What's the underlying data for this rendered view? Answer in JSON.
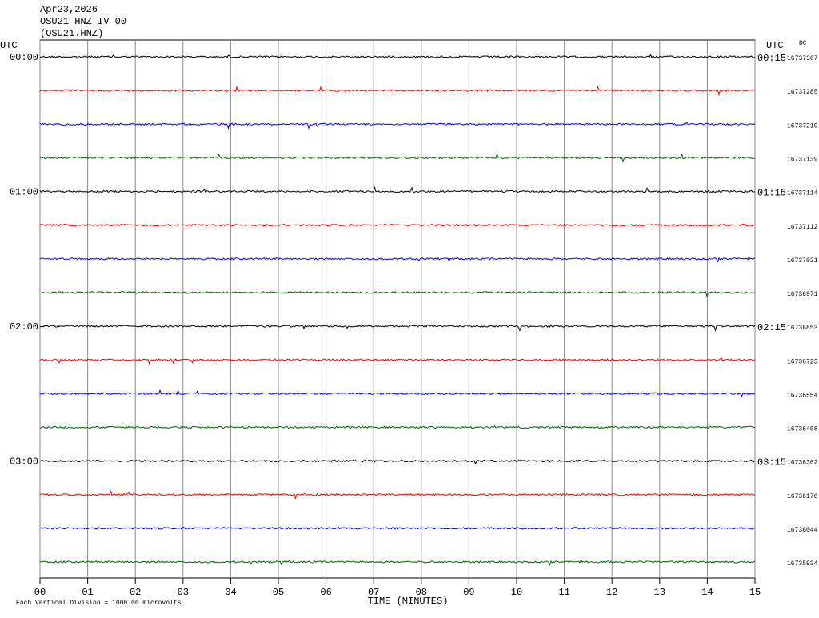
{
  "chart_data": {
    "type": "helicorder",
    "title_lines": [
      "Apr23,2026",
      "OSU21 HNZ IV 00",
      "(OSU21.HNZ)"
    ],
    "left_axis_label": "UTC",
    "right_axis_label": "UTC",
    "dc_label": "DC",
    "xlabel": "TIME (MINUTES)",
    "footnote": "Each Vertical Division = 1000.00 microvolts",
    "xlim": [
      0,
      15
    ],
    "xticks": [
      {
        "value": 0,
        "label": "00"
      },
      {
        "value": 1,
        "label": "01"
      },
      {
        "value": 2,
        "label": "02"
      },
      {
        "value": 3,
        "label": "03"
      },
      {
        "value": 4,
        "label": "04"
      },
      {
        "value": 5,
        "label": "05"
      },
      {
        "value": 6,
        "label": "06"
      },
      {
        "value": 7,
        "label": "07"
      },
      {
        "value": 8,
        "label": "08"
      },
      {
        "value": 9,
        "label": "09"
      },
      10,
      11,
      12,
      13,
      14,
      15
    ],
    "grid": true,
    "rows": [
      {
        "color": "#000000",
        "dc": 16737367,
        "left_label": "00:00",
        "right_label": "00:15"
      },
      {
        "color": "#ff0000",
        "dc": 16737285,
        "left_label": null,
        "right_label": null
      },
      {
        "color": "#0000ff",
        "dc": 16737219,
        "left_label": null,
        "right_label": null
      },
      {
        "color": "#006400",
        "dc": 16737139,
        "left_label": null,
        "right_label": null
      },
      {
        "color": "#000000",
        "dc": 16737114,
        "left_label": "01:00",
        "right_label": "01:15"
      },
      {
        "color": "#ff0000",
        "dc": 16737112,
        "left_label": null,
        "right_label": null
      },
      {
        "color": "#0000ff",
        "dc": 16737021,
        "left_label": null,
        "right_label": null
      },
      {
        "color": "#006400",
        "dc": 16736971,
        "left_label": null,
        "right_label": null
      },
      {
        "color": "#000000",
        "dc": 16736853,
        "left_label": "02:00",
        "right_label": "02:15"
      },
      {
        "color": "#ff0000",
        "dc": 16736723,
        "left_label": null,
        "right_label": null
      },
      {
        "color": "#0000ff",
        "dc": 16736554,
        "left_label": null,
        "right_label": null
      },
      {
        "color": "#006400",
        "dc": 16736408,
        "left_label": null,
        "right_label": null
      },
      {
        "color": "#000000",
        "dc": 16736362,
        "left_label": "03:00",
        "right_label": "03:15"
      },
      {
        "color": "#ff0000",
        "dc": 16736176,
        "left_label": null,
        "right_label": null
      },
      {
        "color": "#0000ff",
        "dc": 16736044,
        "left_label": null,
        "right_label": null
      },
      {
        "color": "#006400",
        "dc": 16735934,
        "left_label": null,
        "right_label": null
      }
    ]
  }
}
